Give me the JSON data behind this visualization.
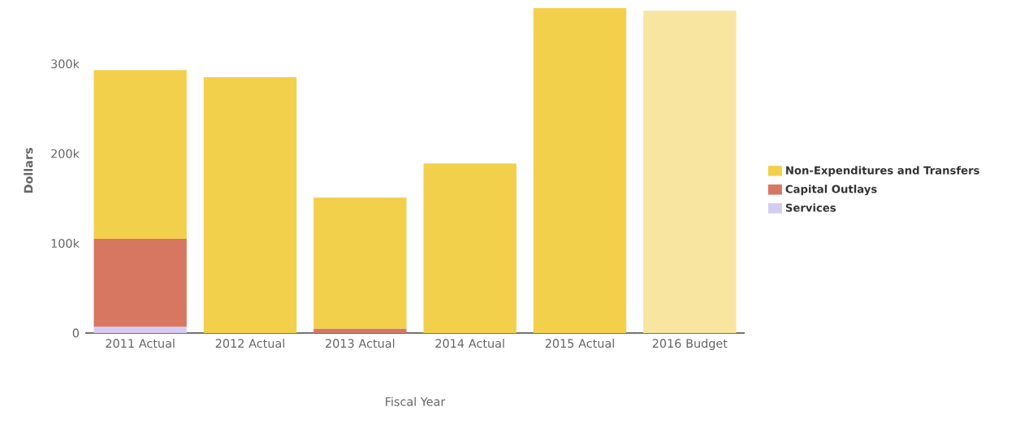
{
  "chart_data": {
    "type": "bar",
    "stacked": true,
    "xlabel": "Fiscal Year",
    "ylabel": "Dollars",
    "categories": [
      "2011 Actual",
      "2012 Actual",
      "2013 Actual",
      "2014 Actual",
      "2015 Actual",
      "2016 Budget"
    ],
    "series": [
      {
        "name": "Services",
        "color": "#d4cdf2",
        "values": [
          7000,
          0,
          0,
          0,
          0,
          0
        ]
      },
      {
        "name": "Capital Outlays",
        "color": "#d77761",
        "values": [
          98000,
          0,
          5000,
          0,
          0,
          0
        ]
      },
      {
        "name": "Non-Expenditures and Transfers",
        "colors": [
          "#f2d04b",
          "#f2d04b",
          "#f2d04b",
          "#f2d04b",
          "#f2d04b",
          "#f8e59f"
        ],
        "values": [
          188000,
          285000,
          146000,
          189000,
          362000,
          359000
        ]
      }
    ],
    "ylim": [
      0,
      362000
    ],
    "yticks": [
      0,
      {
        "value": 100000,
        "label": "100k"
      },
      {
        "value": 200000,
        "label": "200k"
      },
      {
        "value": 300000,
        "label": "300k"
      }
    ],
    "grid": false,
    "legend": "right"
  }
}
